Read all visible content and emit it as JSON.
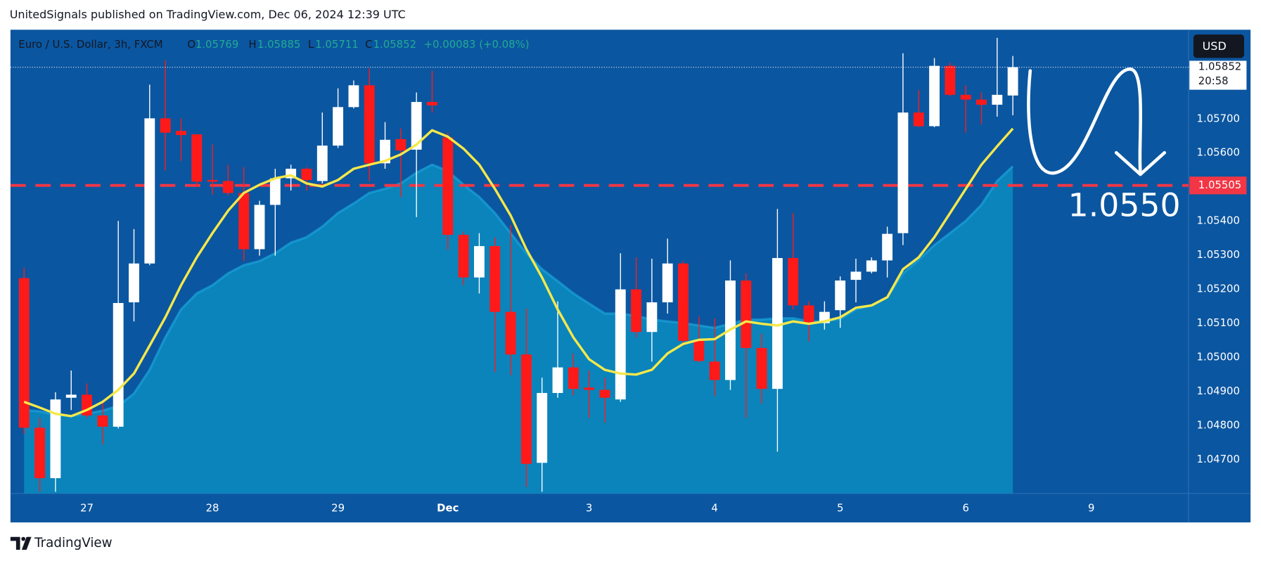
{
  "header": "UnitedSignals published on TradingView.com, Dec 06, 2024 12:39 UTC",
  "footer": "TradingView",
  "chart_data": {
    "type": "candlestick",
    "legend": {
      "title": "Euro / U.S. Dollar, 3h, FXCM",
      "labels": [
        "O",
        "H",
        "L",
        "C"
      ],
      "change": "+0.00083 (+0.08%)"
    },
    "currency": "USD",
    "countdown": "20:58",
    "up_color": "#ffffff",
    "down_color": "#ff1a1a",
    "open": [
      1.05233,
      1.04794,
      1.04646,
      1.04882,
      1.04891,
      1.0483,
      1.04797,
      1.05162,
      1.05276,
      1.05702,
      1.05665,
      1.05655,
      1.05521,
      1.05518,
      1.05483,
      1.05318,
      1.05448,
      1.05526,
      1.05554,
      1.05518,
      1.05622,
      1.05735,
      1.05799,
      1.0557,
      1.05641,
      1.0561,
      1.0575,
      1.05646,
      1.0536,
      1.05235,
      1.05327,
      1.05134,
      1.05009,
      1.04691,
      1.04896,
      1.04971,
      1.04912,
      1.04905,
      1.04877,
      1.052,
      1.05075,
      1.05162,
      1.05276,
      1.05049,
      1.04988,
      1.04934,
      1.05226,
      1.05028,
      1.04908,
      1.05292,
      1.05153,
      1.05101,
      1.05139,
      1.05228,
      1.05252,
      1.05285,
      1.05365,
      1.05719,
      1.05679,
      1.05856,
      1.05771,
      1.05757,
      1.05742,
      1.05769
    ],
    "high": [
      1.05264,
      1.04823,
      1.04898,
      1.04962,
      1.04924,
      1.0487,
      1.05401,
      1.05377,
      1.05801,
      1.05872,
      1.05702,
      1.05655,
      1.05625,
      1.05566,
      1.05559,
      1.0546,
      1.05554,
      1.05566,
      1.05559,
      1.05719,
      1.0579,
      1.05813,
      1.05849,
      1.05691,
      1.05672,
      1.05778,
      1.05841,
      1.0566,
      1.0537,
      1.05365,
      1.05353,
      1.05389,
      1.05144,
      1.04941,
      1.05165,
      1.05012,
      1.04962,
      1.04941,
      1.05306,
      1.05294,
      1.0529,
      1.05349,
      1.05283,
      1.0512,
      1.05115,
      1.05285,
      1.05247,
      1.0507,
      1.05436,
      1.05424,
      1.05165,
      1.05165,
      1.05238,
      1.0529,
      1.05294,
      1.05384,
      1.05893,
      1.05785,
      1.05879,
      1.05865,
      1.05799,
      1.05778,
      1.05938,
      1.05885
    ],
    "low": [
      1.04776,
      1.04606,
      1.04606,
      1.04846,
      1.04823,
      1.04745,
      1.04792,
      1.05106,
      1.05271,
      1.05549,
      1.05577,
      1.055,
      1.05478,
      1.05476,
      1.05283,
      1.05299,
      1.05299,
      1.0549,
      1.0549,
      1.05511,
      1.05615,
      1.05731,
      1.05518,
      1.05554,
      1.05471,
      1.05412,
      1.05719,
      1.05316,
      1.05212,
      1.05188,
      1.04957,
      1.04948,
      1.0462,
      1.04606,
      1.04882,
      1.04889,
      1.04823,
      1.04809,
      1.0487,
      1.05059,
      1.04988,
      1.05129,
      1.05035,
      1.04986,
      1.04887,
      1.04905,
      1.04823,
      1.04865,
      1.04724,
      1.05141,
      1.05047,
      1.05082,
      1.05087,
      1.05162,
      1.05247,
      1.05235,
      1.0533,
      1.05676,
      1.05676,
      1.05766,
      1.0566,
      1.05684,
      1.05707,
      1.05711
    ],
    "close": [
      1.04794,
      1.04646,
      1.04877,
      1.04891,
      1.0483,
      1.04797,
      1.0516,
      1.05276,
      1.05702,
      1.0566,
      1.05653,
      1.05516,
      1.05516,
      1.05483,
      1.05318,
      1.05448,
      1.05526,
      1.05554,
      1.05521,
      1.05622,
      1.05735,
      1.05799,
      1.0557,
      1.05639,
      1.05608,
      1.0575,
      1.0574,
      1.0536,
      1.05235,
      1.05327,
      1.05134,
      1.05009,
      1.04688,
      1.04896,
      1.04971,
      1.04908,
      1.04905,
      1.04882,
      1.052,
      1.05075,
      1.05162,
      1.05276,
      1.05049,
      1.0499,
      1.04934,
      1.05226,
      1.05028,
      1.04908,
      1.05292,
      1.05153,
      1.05099,
      1.05134,
      1.05226,
      1.05252,
      1.05285,
      1.05363,
      1.05719,
      1.05679,
      1.05856,
      1.05771,
      1.05757,
      1.05742,
      1.05771,
      1.05852
    ],
    "lines": [
      {
        "color": "#f5e84a",
        "values": [
          1.0487,
          1.04853,
          1.04835,
          1.04828,
          1.04846,
          1.0487,
          1.04905,
          1.04953,
          1.05035,
          1.05118,
          1.05212,
          1.05294,
          1.05365,
          1.05431,
          1.05483,
          1.05507,
          1.05526,
          1.05535,
          1.05511,
          1.05502,
          1.05521,
          1.05554,
          1.05566,
          1.05577,
          1.05596,
          1.05625,
          1.05667,
          1.05648,
          1.05613,
          1.05566,
          1.05495,
          1.05417,
          1.05318,
          1.05235,
          1.05141,
          1.05059,
          1.04995,
          1.04964,
          1.04953,
          1.0495,
          1.04964,
          1.05012,
          1.0504,
          1.05052,
          1.05054,
          1.05082,
          1.05106,
          1.05099,
          1.05094,
          1.05106,
          1.05099,
          1.05106,
          1.05118,
          1.05146,
          1.05153,
          1.05177,
          1.05259,
          1.05294,
          1.05353,
          1.05424,
          1.05495,
          1.05566,
          1.0562,
          1.05672
        ]
      }
    ],
    "area": {
      "color": "#0a8cc0",
      "values": [
        1.04846,
        1.04842,
        1.04832,
        1.04828,
        1.04835,
        1.04844,
        1.04858,
        1.04894,
        1.04964,
        1.05059,
        1.05141,
        1.05188,
        1.05212,
        1.05247,
        1.05271,
        1.05283,
        1.05306,
        1.05337,
        1.05353,
        1.05384,
        1.05424,
        1.05452,
        1.05483,
        1.05495,
        1.05511,
        1.05542,
        1.05566,
        1.05547,
        1.05507,
        1.05471,
        1.05424,
        1.05365,
        1.05306,
        1.05259,
        1.05224,
        1.05188,
        1.05158,
        1.05129,
        1.05129,
        1.05122,
        1.05111,
        1.05106,
        1.05101,
        1.05094,
        1.05087,
        1.05099,
        1.05111,
        1.05111,
        1.05115,
        1.05115,
        1.05106,
        1.05106,
        1.05113,
        1.05141,
        1.05153,
        1.05177,
        1.05247,
        1.05287,
        1.0533,
        1.05365,
        1.05401,
        1.05448,
        1.05518,
        1.05561
      ]
    },
    "horizontal_line": {
      "value": 1.05505,
      "color": "#f23645"
    },
    "annotation": "1.0550",
    "xlim": [
      -0.87,
      74.2
    ],
    "xticks": [
      {
        "value": 4,
        "label": "27"
      },
      {
        "value": 12,
        "label": "28"
      },
      {
        "value": 20,
        "label": "29"
      },
      {
        "value": 27,
        "label": "Dec"
      },
      {
        "value": 36,
        "label": "3"
      },
      {
        "value": 44,
        "label": "4"
      },
      {
        "value": 52,
        "label": "5"
      },
      {
        "value": 60,
        "label": "6"
      },
      {
        "value": 68,
        "label": "9"
      }
    ],
    "ylim": [
      1.04601,
      1.05962
    ],
    "yticks": [
      {
        "value": 1.057,
        "label": "1.05700"
      },
      {
        "value": 1.056,
        "label": "1.05600"
      },
      {
        "value": 1.054,
        "label": "1.05400"
      },
      {
        "value": 1.053,
        "label": "1.05300"
      },
      {
        "value": 1.052,
        "label": "1.05200"
      },
      {
        "value": 1.051,
        "label": "1.05100"
      },
      {
        "value": 1.05,
        "label": "1.05000"
      },
      {
        "value": 1.049,
        "label": "1.04900"
      },
      {
        "value": 1.048,
        "label": "1.04800"
      },
      {
        "value": 1.047,
        "label": "1.04700"
      }
    ],
    "grid": false
  }
}
